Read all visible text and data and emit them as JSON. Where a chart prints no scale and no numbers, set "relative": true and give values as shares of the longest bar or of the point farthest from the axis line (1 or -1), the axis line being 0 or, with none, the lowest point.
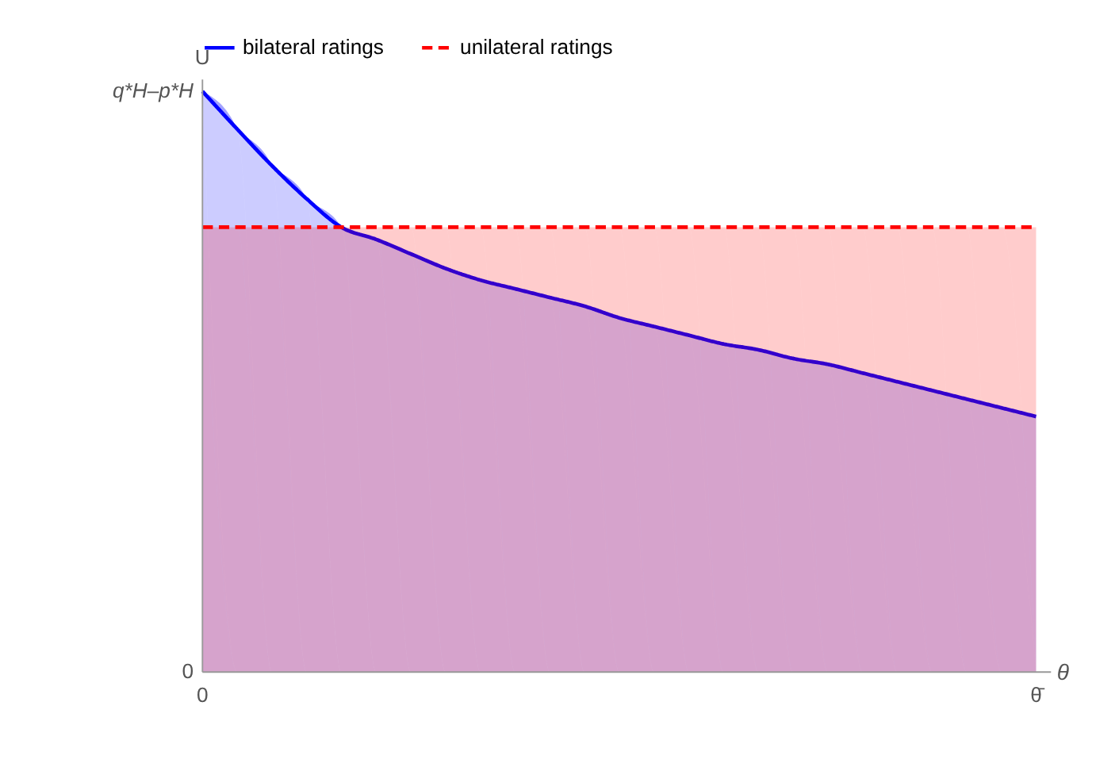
{
  "chart_data": {
    "type": "area",
    "relative": true,
    "xlabel": "θ",
    "ylabel": "U",
    "categories": [
      null,
      null,
      null,
      null,
      null,
      null,
      null,
      null,
      null,
      null,
      null,
      null,
      null,
      null,
      null,
      null,
      null,
      null,
      null,
      null,
      null,
      null,
      null,
      null,
      null
    ],
    "series": [
      {
        "name": "bilateral ratings",
        "color": "#0000ff",
        "line_style": "solid",
        "values": [
          1,
          0.935,
          0.872,
          0.815,
          0.766,
          0.745,
          0.72,
          0.695,
          0.675,
          0.66,
          0.645,
          0.63,
          0.61,
          0.595,
          0.58,
          0.565,
          0.555,
          0.54,
          0.53,
          0.515,
          0.5,
          0.485,
          0.47,
          0.455,
          0.44
        ]
      },
      {
        "name": "unilateral ratings",
        "color": "#ff0000",
        "line_style": "dashed",
        "values": [
          0.766,
          0.766,
          0.766,
          0.766,
          0.766,
          0.766,
          0.766,
          0.766,
          0.766,
          0.766,
          0.766,
          0.766,
          0.766,
          0.766,
          0.766,
          0.766,
          0.766,
          0.766,
          0.766,
          0.766,
          0.766,
          0.766,
          0.766,
          0.766,
          0.766
        ]
      }
    ],
    "annotations": [
      "q*H–p*H",
      "0",
      "0",
      "θ̄"
    ],
    "legend": "top"
  }
}
